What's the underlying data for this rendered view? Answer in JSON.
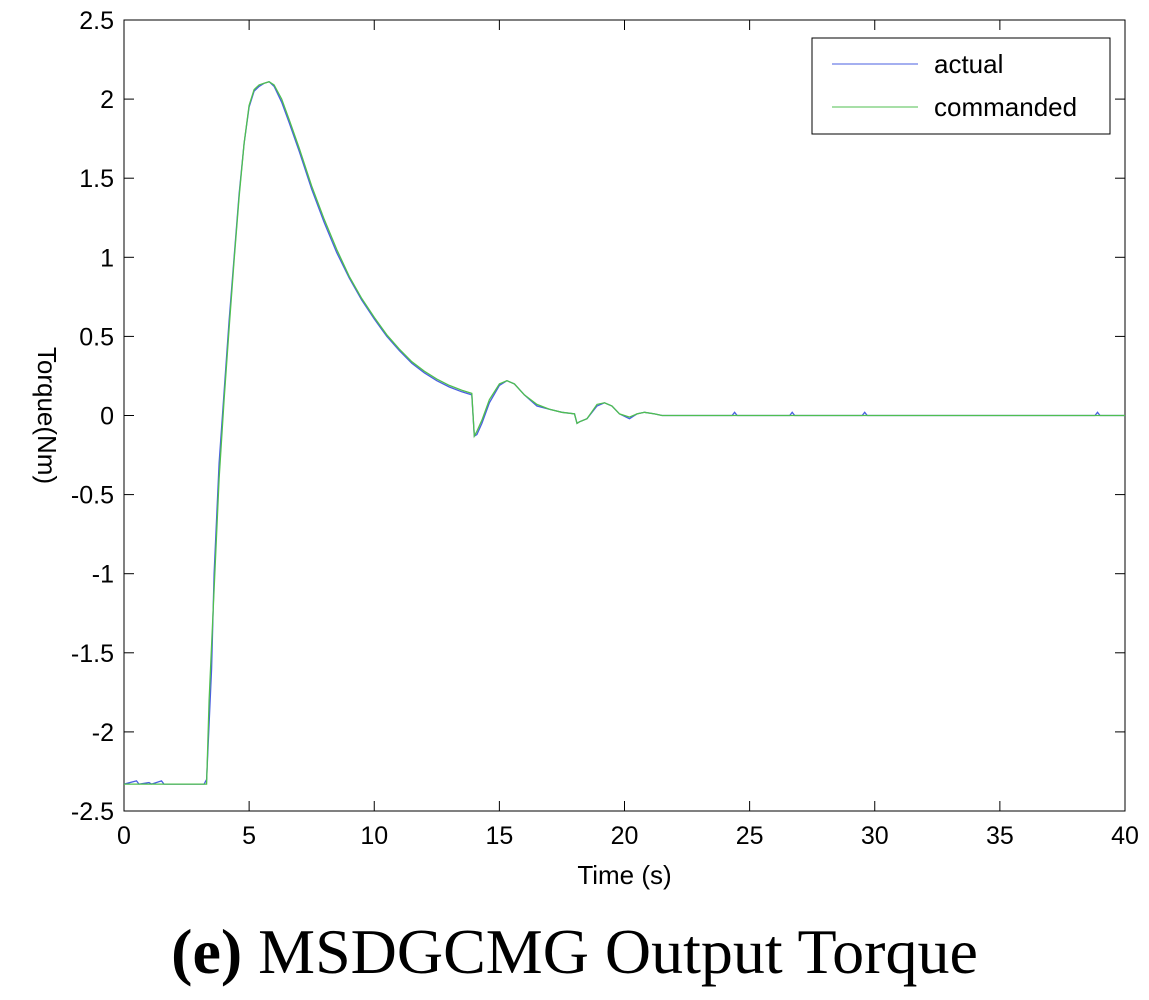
{
  "caption": {
    "tag": "(e)",
    "text": "MSDGCMG Output Torque"
  },
  "chart_data": {
    "type": "line",
    "xlabel": "Time (s)",
    "ylabel": "Torque(Nm)",
    "xlim": [
      0,
      40
    ],
    "ylim": [
      -2.5,
      2.5
    ],
    "xticks": [
      0,
      5,
      10,
      15,
      20,
      25,
      30,
      35,
      40
    ],
    "yticks": [
      -2.5,
      -2,
      -1.5,
      -1,
      -0.5,
      0,
      0.5,
      1,
      1.5,
      2,
      2.5
    ],
    "grid": false,
    "legend_position": "top-right",
    "series": [
      {
        "name": "actual",
        "color": "#4a5fe0",
        "x": [
          0,
          0.5,
          0.6,
          1.0,
          1.1,
          1.5,
          1.6,
          2.0,
          3.2,
          3.3,
          3.5,
          3.6,
          3.8,
          4.0,
          4.2,
          4.4,
          4.6,
          4.8,
          5.0,
          5.2,
          5.4,
          5.6,
          5.8,
          6.0,
          6.3,
          6.6,
          7.0,
          7.5,
          8.0,
          8.5,
          9.0,
          9.5,
          10.0,
          10.5,
          11.0,
          11.5,
          12.0,
          12.5,
          13.0,
          13.5,
          13.9,
          14.0,
          14.1,
          14.3,
          14.6,
          15.0,
          15.3,
          15.6,
          16.0,
          16.5,
          17.0,
          17.5,
          18.0,
          18.1,
          18.2,
          18.5,
          18.9,
          19.2,
          19.5,
          19.8,
          20.2,
          20.5,
          20.8,
          21.2,
          21.5,
          22.0,
          23.0,
          24.3,
          24.4,
          24.5,
          26.6,
          26.7,
          26.8,
          29.5,
          29.6,
          29.7,
          38.8,
          38.9,
          39.0,
          40
        ],
        "y": [
          -2.33,
          -2.31,
          -2.33,
          -2.32,
          -2.33,
          -2.31,
          -2.33,
          -2.33,
          -2.33,
          -2.3,
          -1.6,
          -1.0,
          -0.3,
          0.15,
          0.6,
          1.0,
          1.4,
          1.72,
          1.95,
          2.05,
          2.08,
          2.1,
          2.11,
          2.08,
          1.98,
          1.85,
          1.67,
          1.43,
          1.22,
          1.03,
          0.87,
          0.73,
          0.61,
          0.5,
          0.41,
          0.33,
          0.27,
          0.22,
          0.18,
          0.15,
          0.13,
          -0.13,
          -0.12,
          -0.05,
          0.08,
          0.19,
          0.22,
          0.2,
          0.13,
          0.06,
          0.04,
          0.02,
          0.01,
          -0.05,
          -0.04,
          -0.02,
          0.06,
          0.08,
          0.06,
          0.01,
          -0.02,
          0.01,
          0.02,
          0.01,
          0.0,
          0.0,
          0.0,
          0.0,
          0.02,
          0.0,
          0.0,
          0.02,
          0.0,
          0.0,
          0.02,
          0.0,
          0.0,
          0.02,
          0.0,
          0.0
        ]
      },
      {
        "name": "commanded",
        "color": "#4fbf4f",
        "x": [
          0,
          3.3,
          3.4,
          3.6,
          3.8,
          4.0,
          4.2,
          4.4,
          4.6,
          4.8,
          5.0,
          5.2,
          5.4,
          5.6,
          5.8,
          6.0,
          6.3,
          6.6,
          7.0,
          7.5,
          8.0,
          8.5,
          9.0,
          9.5,
          10.0,
          10.5,
          11.0,
          11.5,
          12.0,
          12.5,
          13.0,
          13.5,
          13.9,
          14.0,
          14.1,
          14.3,
          14.6,
          15.0,
          15.3,
          15.6,
          16.0,
          16.5,
          17.0,
          17.5,
          18.0,
          18.1,
          18.2,
          18.5,
          18.9,
          19.2,
          19.5,
          19.8,
          20.2,
          20.5,
          20.8,
          21.2,
          21.5,
          22.0,
          40
        ],
        "y": [
          -2.33,
          -2.33,
          -1.8,
          -1.1,
          -0.4,
          0.1,
          0.55,
          0.98,
          1.38,
          1.72,
          1.96,
          2.06,
          2.09,
          2.1,
          2.11,
          2.09,
          2.0,
          1.87,
          1.69,
          1.45,
          1.24,
          1.05,
          0.88,
          0.74,
          0.62,
          0.51,
          0.42,
          0.34,
          0.28,
          0.23,
          0.19,
          0.16,
          0.14,
          -0.13,
          -0.1,
          -0.03,
          0.1,
          0.2,
          0.22,
          0.2,
          0.13,
          0.07,
          0.04,
          0.02,
          0.01,
          -0.05,
          -0.04,
          -0.02,
          0.07,
          0.08,
          0.06,
          0.01,
          -0.01,
          0.01,
          0.02,
          0.01,
          0.0,
          0.0,
          0.0
        ]
      }
    ]
  }
}
